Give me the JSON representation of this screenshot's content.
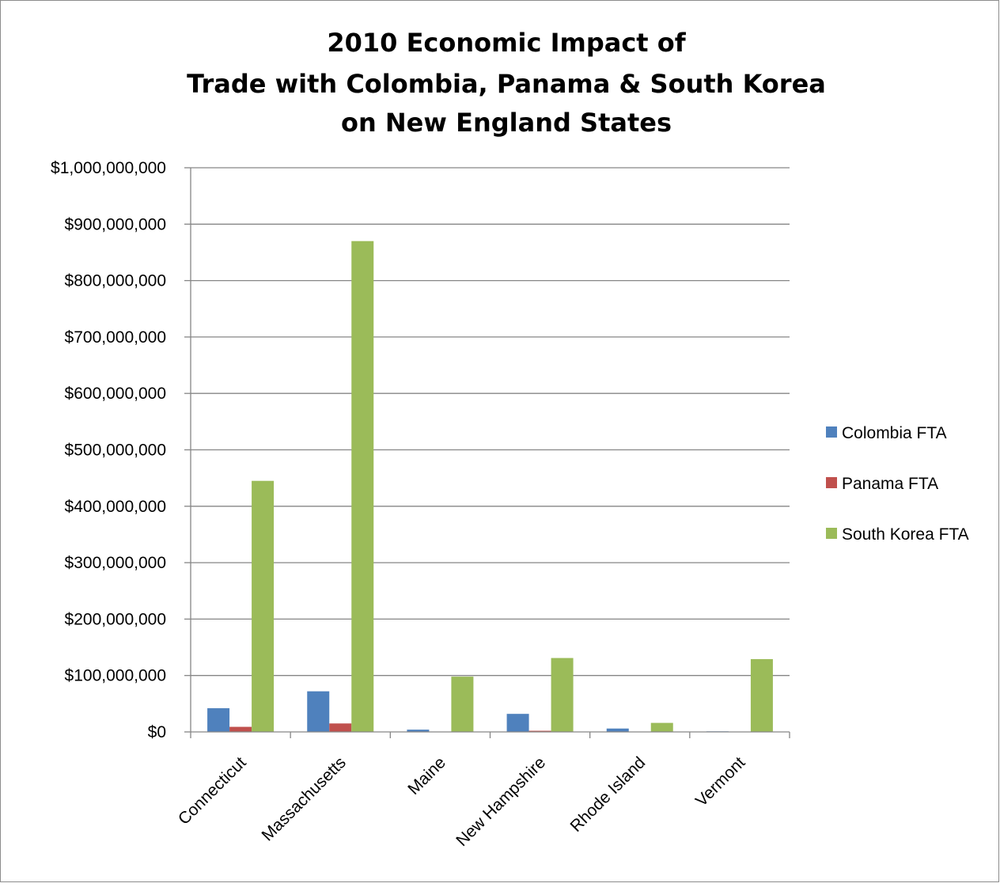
{
  "chart_data": {
    "type": "bar",
    "title_lines": [
      "2010 Economic Impact of",
      "Trade with Colombia, Panama & South Korea",
      "on New England States"
    ],
    "categories": [
      "Connecticut",
      "Massachusetts",
      "Maine",
      "New Hampshire",
      "Rhode Island",
      "Vermont"
    ],
    "series": [
      {
        "name": "Colombia FTA",
        "color": "#4F81BD",
        "values": [
          42000000,
          72000000,
          4000000,
          32000000,
          6000000,
          1000000
        ]
      },
      {
        "name": "Panama FTA",
        "color": "#C0504D",
        "values": [
          9000000,
          15000000,
          500000,
          2000000,
          500000,
          500000
        ]
      },
      {
        "name": "South Korea FTA",
        "color": "#9BBB59",
        "values": [
          445000000,
          870000000,
          98000000,
          131000000,
          16000000,
          129000000
        ]
      }
    ],
    "ylim": [
      0,
      1000000000
    ],
    "yticks": [
      0,
      100000000,
      200000000,
      300000000,
      400000000,
      500000000,
      600000000,
      700000000,
      800000000,
      900000000,
      1000000000
    ],
    "ytick_labels": [
      "$0",
      "$100,000,000",
      "$200,000,000",
      "$300,000,000",
      "$400,000,000",
      "$500,000,000",
      "$600,000,000",
      "$700,000,000",
      "$800,000,000",
      "$900,000,000",
      "$1,000,000,000"
    ],
    "grid": true,
    "legend_position": "right",
    "xlabel": "",
    "ylabel": ""
  }
}
